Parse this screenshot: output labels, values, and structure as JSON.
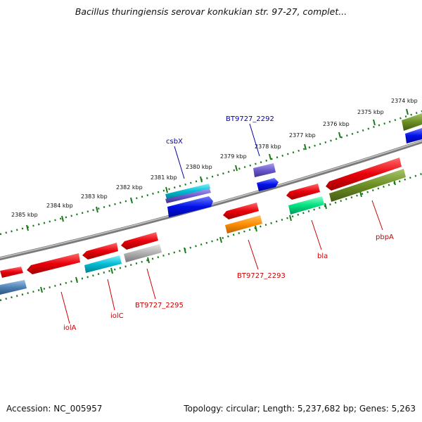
{
  "title": "Bacillus thuringiensis serovar konkukian str. 97-27, complet...",
  "footer": {
    "accession": "Accession: NC_005957",
    "summary": "Topology: circular; Length: 5,237,682 bp; Genes: 5,263"
  },
  "axis": {
    "unit": "kbp",
    "ticks": [
      "2385 kbp",
      "2384 kbp",
      "2383 kbp",
      "2382 kbp",
      "2381 kbp",
      "2380 kbp",
      "2379 kbp",
      "2378 kbp",
      "2377 kbp",
      "2376 kbp",
      "2375 kbp",
      "2374 kbp"
    ]
  },
  "genes": [
    {
      "label": "iolA",
      "strand": "reverse",
      "color": "#e8000b"
    },
    {
      "label": "iolC",
      "strand": "reverse",
      "color": "#e8000b"
    },
    {
      "label": "BT9727_2295",
      "strand": "reverse",
      "color": "#e8000b"
    },
    {
      "label": "csbX",
      "strand": "forward",
      "color": "#00bcd4"
    },
    {
      "label": "BT9727_2293",
      "strand": "reverse",
      "color": "#e8000b"
    },
    {
      "label": "BT9727_2292",
      "strand": "forward",
      "color": "#6a5acd"
    },
    {
      "label": "bla",
      "strand": "reverse",
      "color": "#e8000b"
    },
    {
      "label": "pbpA",
      "strand": "reverse",
      "color": "#e8000b"
    }
  ],
  "colors": {
    "red": "#e8000b",
    "cyan": "#00bcd4",
    "blue": "#0010e8",
    "orange": "#ff8c00",
    "green": "#00e080",
    "olive": "#6b8e23",
    "gray": "#b0b0b0",
    "steelblue": "#4f82b4",
    "slate": "#6a5acd",
    "backbone": "#8c8c8c",
    "ticks": "#1a7a1a"
  }
}
